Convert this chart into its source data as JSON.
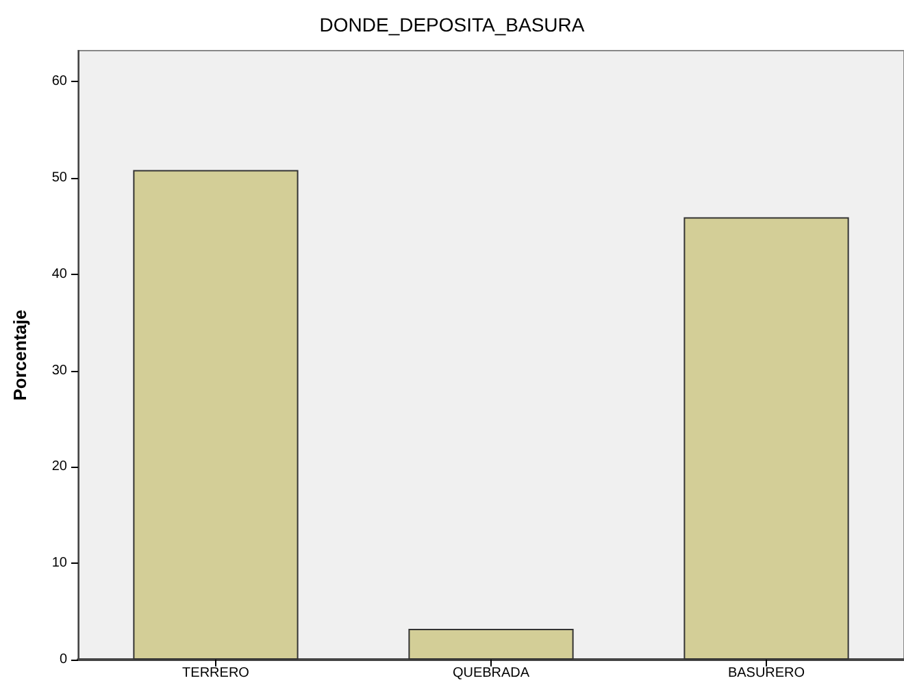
{
  "chart_data": {
    "type": "bar",
    "title": "DONDE_DEPOSITA_BASURA",
    "ylabel": "Porcentaje",
    "categories": [
      "TERRERO",
      "QUEBRADA",
      "BASURERO"
    ],
    "values": [
      50.8,
      3.2,
      45.9
    ],
    "color": "#d3ce97",
    "ylim": [
      0,
      63.2
    ],
    "yticks": [
      0,
      10,
      20,
      30,
      40,
      50,
      60
    ],
    "grid": false
  }
}
